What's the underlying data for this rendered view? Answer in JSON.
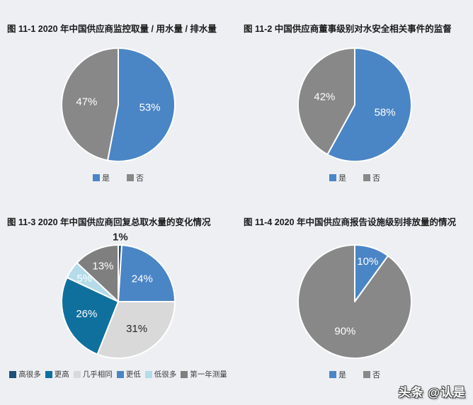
{
  "page": {
    "background": "#edeff3",
    "watermark": "头条 @认是"
  },
  "chart_data": [
    {
      "type": "pie",
      "title": "图 11-1  2020 年中国供应商监控取量 / 用水量 / 排水量",
      "categories": [
        "是",
        "否"
      ],
      "values": [
        53,
        47
      ],
      "legend_position": "bottom",
      "draw_order": [
        0,
        1
      ],
      "slices": [
        {
          "label": "是",
          "value": 53,
          "color": "#4a85c6",
          "label_color": "#ffffff",
          "label_r": 0.56
        },
        {
          "label": "否",
          "value": 47,
          "color": "#888888",
          "label_color": "#ffffff",
          "label_r": 0.56
        }
      ]
    },
    {
      "type": "pie",
      "title": "图 11-2  中国供应商董事级别对水安全相关事件的监督",
      "categories": [
        "是",
        "否"
      ],
      "values": [
        58,
        42
      ],
      "legend_position": "bottom",
      "draw_order": [
        0,
        1
      ],
      "slices": [
        {
          "label": "是",
          "value": 58,
          "color": "#4a85c6",
          "label_color": "#ffffff",
          "label_r": 0.55
        },
        {
          "label": "否",
          "value": 42,
          "color": "#888888",
          "label_color": "#ffffff",
          "label_r": 0.55
        }
      ]
    },
    {
      "type": "pie",
      "title": "图 11-3  2020 年中国供应商回复总取水量的变化情况",
      "categories": [
        "高很多",
        "更高",
        "几乎相同",
        "更低",
        "低很多",
        "第一年测量"
      ],
      "values": [
        1,
        26,
        31,
        24,
        5,
        13
      ],
      "legend_position": "bottom",
      "draw_order": [
        0,
        3,
        2,
        1,
        4,
        5
      ],
      "slices": [
        {
          "label": "高很多",
          "value": 1,
          "color": "#1f4e79",
          "label_color": "#262626",
          "label_r": 1.14,
          "label_outside": true
        },
        {
          "label": "更高",
          "value": 26,
          "color": "#0f709e",
          "label_color": "#ffffff",
          "label_r": 0.6
        },
        {
          "label": "几乎相同",
          "value": 31,
          "color": "#d9d9d9",
          "label_color": "#262626",
          "label_r": 0.58
        },
        {
          "label": "更低",
          "value": 24,
          "color": "#4a85c6",
          "label_color": "#ffffff",
          "label_r": 0.58
        },
        {
          "label": "低很多",
          "value": 5,
          "color": "#b4dbe9",
          "label_color": "#ffffff",
          "label_r": 0.72
        },
        {
          "label": "第一年测量",
          "value": 13,
          "color": "#7f7f7f",
          "label_color": "#ffffff",
          "label_r": 0.68
        }
      ]
    },
    {
      "type": "pie",
      "title": "图 11-4  2020 年中国供应商报告设施级别排放量的情况",
      "categories": [
        "是",
        "否"
      ],
      "values": [
        10,
        90
      ],
      "legend_position": "bottom",
      "draw_order": [
        0,
        1
      ],
      "slices": [
        {
          "label": "是",
          "value": 10,
          "color": "#4a85c6",
          "label_color": "#ffffff",
          "label_r": 0.74
        },
        {
          "label": "否",
          "value": 90,
          "color": "#888888",
          "label_color": "#ffffff",
          "label_r": 0.55
        }
      ]
    }
  ]
}
